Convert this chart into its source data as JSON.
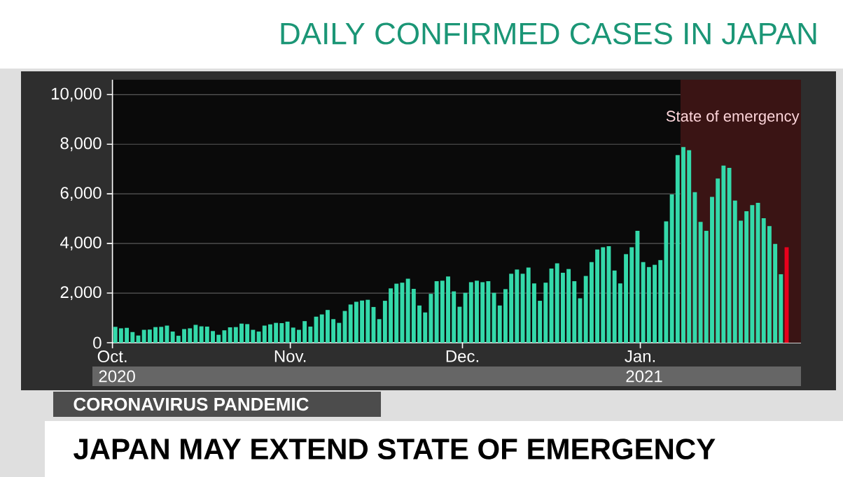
{
  "chart_data": {
    "type": "bar",
    "title": "DAILY CONFIRMED CASES IN JAPAN",
    "annotations": [
      "2020",
      "2021",
      "CORONAVIRUS PANDEMIC",
      "JAPAN MAY EXTEND STATE OF EMERGENCY"
    ],
    "x": [
      "2020-10-01",
      "2020-10-02",
      "2020-10-03",
      "2020-10-04",
      "2020-10-05",
      "2020-10-06",
      "2020-10-07",
      "2020-10-08",
      "2020-10-09",
      "2020-10-10",
      "2020-10-11",
      "2020-10-12",
      "2020-10-13",
      "2020-10-14",
      "2020-10-15",
      "2020-10-16",
      "2020-10-17",
      "2020-10-18",
      "2020-10-19",
      "2020-10-20",
      "2020-10-21",
      "2020-10-22",
      "2020-10-23",
      "2020-10-24",
      "2020-10-25",
      "2020-10-26",
      "2020-10-27",
      "2020-10-28",
      "2020-10-29",
      "2020-10-30",
      "2020-10-31",
      "2020-11-01",
      "2020-11-02",
      "2020-11-03",
      "2020-11-04",
      "2020-11-05",
      "2020-11-06",
      "2020-11-07",
      "2020-11-08",
      "2020-11-09",
      "2020-11-10",
      "2020-11-11",
      "2020-11-12",
      "2020-11-13",
      "2020-11-14",
      "2020-11-15",
      "2020-11-16",
      "2020-11-17",
      "2020-11-18",
      "2020-11-19",
      "2020-11-20",
      "2020-11-21",
      "2020-11-22",
      "2020-11-23",
      "2020-11-24",
      "2020-11-25",
      "2020-11-26",
      "2020-11-27",
      "2020-11-28",
      "2020-11-29",
      "2020-11-30",
      "2020-12-01",
      "2020-12-02",
      "2020-12-03",
      "2020-12-04",
      "2020-12-05",
      "2020-12-06",
      "2020-12-07",
      "2020-12-08",
      "2020-12-09",
      "2020-12-10",
      "2020-12-11",
      "2020-12-12",
      "2020-12-13",
      "2020-12-14",
      "2020-12-15",
      "2020-12-16",
      "2020-12-17",
      "2020-12-18",
      "2020-12-19",
      "2020-12-20",
      "2020-12-21",
      "2020-12-22",
      "2020-12-23",
      "2020-12-24",
      "2020-12-25",
      "2020-12-26",
      "2020-12-27",
      "2020-12-28",
      "2020-12-29",
      "2020-12-30",
      "2020-12-31",
      "2021-01-01",
      "2021-01-02",
      "2021-01-03",
      "2021-01-04",
      "2021-01-05",
      "2021-01-06",
      "2021-01-07",
      "2021-01-08",
      "2021-01-09",
      "2021-01-10",
      "2021-01-11",
      "2021-01-12",
      "2021-01-13",
      "2021-01-14",
      "2021-01-15",
      "2021-01-16",
      "2021-01-17",
      "2021-01-18",
      "2021-01-19",
      "2021-01-20",
      "2021-01-21",
      "2021-01-22",
      "2021-01-23",
      "2021-01-24",
      "2021-01-25",
      "2021-01-26"
    ],
    "values": [
      640,
      580,
      600,
      430,
      290,
      520,
      530,
      630,
      640,
      690,
      450,
      280,
      550,
      580,
      720,
      660,
      650,
      470,
      320,
      500,
      620,
      630,
      770,
      750,
      520,
      450,
      690,
      740,
      800,
      790,
      850,
      610,
      520,
      870,
      650,
      1050,
      1140,
      1320,
      950,
      800,
      1280,
      1540,
      1650,
      1700,
      1730,
      1440,
      950,
      1690,
      2190,
      2380,
      2420,
      2580,
      2170,
      1500,
      1220,
      1970,
      2480,
      2500,
      2670,
      2070,
      1450,
      2010,
      2440,
      2500,
      2440,
      2480,
      2010,
      1500,
      2160,
      2780,
      2950,
      2780,
      3030,
      2390,
      1690,
      2420,
      2990,
      3200,
      2820,
      2970,
      2480,
      1790,
      2690,
      3250,
      3760,
      3850,
      3890,
      2910,
      2390,
      3570,
      3850,
      4510,
      3250,
      3050,
      3140,
      3330,
      4890,
      5980,
      7560,
      7890,
      7760,
      6070,
      4870,
      4510,
      5880,
      6620,
      7140,
      7050,
      5730,
      4920,
      5300,
      5550,
      5640,
      5020,
      4700,
      3980,
      2760,
      3850
    ],
    "colors": [
      "#34d9aa",
      "#34d9aa",
      "#34d9aa",
      "#34d9aa",
      "#34d9aa",
      "#34d9aa",
      "#34d9aa",
      "#34d9aa",
      "#34d9aa",
      "#34d9aa",
      "#34d9aa",
      "#34d9aa",
      "#34d9aa",
      "#34d9aa",
      "#34d9aa",
      "#34d9aa",
      "#34d9aa",
      "#34d9aa",
      "#34d9aa",
      "#34d9aa",
      "#34d9aa",
      "#34d9aa",
      "#34d9aa",
      "#34d9aa",
      "#34d9aa",
      "#34d9aa",
      "#34d9aa",
      "#34d9aa",
      "#34d9aa",
      "#34d9aa",
      "#34d9aa",
      "#34d9aa",
      "#34d9aa",
      "#34d9aa",
      "#34d9aa",
      "#34d9aa",
      "#34d9aa",
      "#34d9aa",
      "#34d9aa",
      "#34d9aa",
      "#34d9aa",
      "#34d9aa",
      "#34d9aa",
      "#34d9aa",
      "#34d9aa",
      "#34d9aa",
      "#34d9aa",
      "#34d9aa",
      "#34d9aa",
      "#34d9aa",
      "#34d9aa",
      "#34d9aa",
      "#34d9aa",
      "#34d9aa",
      "#34d9aa",
      "#34d9aa",
      "#34d9aa",
      "#34d9aa",
      "#34d9aa",
      "#34d9aa",
      "#34d9aa",
      "#34d9aa",
      "#34d9aa",
      "#34d9aa",
      "#34d9aa",
      "#34d9aa",
      "#34d9aa",
      "#34d9aa",
      "#34d9aa",
      "#34d9aa",
      "#34d9aa",
      "#34d9aa",
      "#34d9aa",
      "#34d9aa",
      "#34d9aa",
      "#34d9aa",
      "#34d9aa",
      "#34d9aa",
      "#34d9aa",
      "#34d9aa",
      "#34d9aa",
      "#34d9aa",
      "#34d9aa",
      "#34d9aa",
      "#34d9aa",
      "#34d9aa",
      "#34d9aa",
      "#34d9aa",
      "#34d9aa",
      "#34d9aa",
      "#34d9aa",
      "#34d9aa",
      "#34d9aa",
      "#34d9aa",
      "#34d9aa",
      "#34d9aa",
      "#34d9aa",
      "#34d9aa",
      "#34d9aa",
      "#34d9aa",
      "#34d9aa",
      "#34d9aa",
      "#34d9aa",
      "#34d9aa",
      "#34d9aa",
      "#34d9aa",
      "#34d9aa",
      "#34d9aa",
      "#34d9aa",
      "#34d9aa",
      "#34d9aa",
      "#34d9aa",
      "#34d9aa",
      "#34d9aa",
      "#34d9aa",
      "#34d9aa",
      "#34d9aa",
      "#e8001c"
    ],
    "xlim": [
      "2020-10-01",
      "2021-01-29"
    ],
    "xticks": [
      {
        "value": "2020-10-01",
        "label": "Oct."
      },
      {
        "value": "2020-11-01",
        "label": "Nov."
      },
      {
        "value": "2020-12-01",
        "label": "Dec."
      },
      {
        "value": "2021-01-01",
        "label": "Jan."
      }
    ],
    "ylim": [
      0,
      10600
    ],
    "yticks": [
      0,
      {
        "value": 2000,
        "label": "2,000"
      },
      {
        "value": 4000,
        "label": "4,000"
      },
      {
        "value": 6000,
        "label": "6,000"
      },
      {
        "value": 8000,
        "label": "8,000"
      },
      {
        "value": 10000,
        "label": "10,000"
      }
    ],
    "grid": "y",
    "bands": [
      {
        "axis": "x",
        "from": "2021-01-08",
        "to": "2021-01-29",
        "label": "State of emergency",
        "color": "#3a1414"
      }
    ]
  }
}
